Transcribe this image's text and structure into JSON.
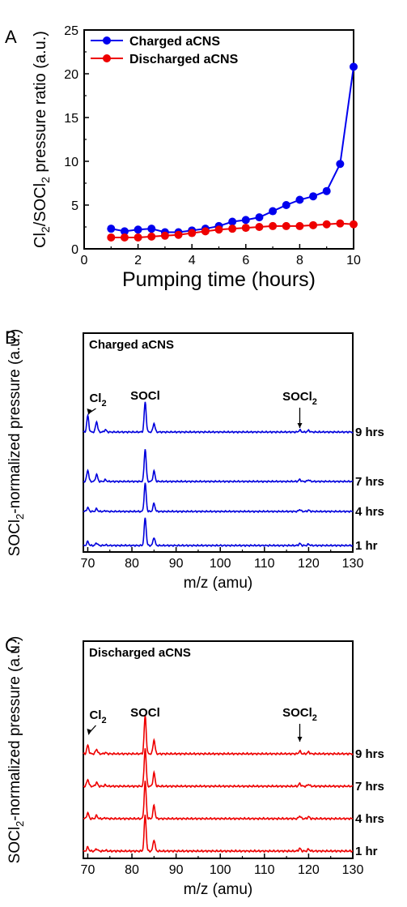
{
  "chart_data": [
    {
      "panel": "A",
      "type": "line",
      "xlabel": "Pumping time (hours)",
      "ylabel": [
        "Cl",
        "2",
        "/SOCl",
        "2",
        " pressure ratio (a.u.)"
      ],
      "xlim": [
        0,
        10
      ],
      "ylim": [
        0,
        25
      ],
      "x_ticks": [
        "0",
        "2",
        "4",
        "6",
        "8",
        "10"
      ],
      "y_ticks": [
        "0",
        "5",
        "10",
        "15",
        "20",
        "25"
      ],
      "x": [
        1,
        1.5,
        2,
        2.5,
        3,
        3.5,
        4,
        4.5,
        5,
        5.5,
        6,
        6.5,
        7,
        7.5,
        8,
        8.5,
        9,
        9.5,
        10
      ],
      "series": [
        {
          "name": "Charged aCNS",
          "color": "#0000ee",
          "values": [
            2.3,
            2.0,
            2.2,
            2.3,
            1.9,
            1.9,
            2.1,
            2.3,
            2.6,
            3.1,
            3.3,
            3.6,
            4.3,
            5.0,
            5.6,
            6.0,
            6.6,
            9.7,
            20.8
          ]
        },
        {
          "name": "Discharged aCNS",
          "color": "#ee0000",
          "values": [
            1.3,
            1.3,
            1.3,
            1.4,
            1.5,
            1.6,
            1.8,
            2.0,
            2.2,
            2.3,
            2.4,
            2.5,
            2.6,
            2.6,
            2.6,
            2.7,
            2.8,
            2.9,
            2.8
          ]
        }
      ],
      "legend": "top-left"
    },
    {
      "panel": "B",
      "type": "line",
      "title": "Charged aCNS",
      "color": "#0000dd",
      "xlabel": "m/z (amu)",
      "ylabel": [
        "SOCl",
        "2",
        "-normalized pressure (a.u.)"
      ],
      "xlim": [
        69,
        130
      ],
      "x_ticks": [
        "70",
        "80",
        "90",
        "100",
        "110",
        "120",
        "130"
      ],
      "traces": [
        "9 hrs",
        "7 hrs",
        "4 hrs",
        "1 hr"
      ],
      "peaks": [
        {
          "mz": 70,
          "heights": [
            0.5,
            0.35,
            0.12,
            0.12
          ]
        },
        {
          "mz": 72,
          "heights": [
            0.32,
            0.22,
            0.08,
            0.08
          ]
        },
        {
          "mz": 74,
          "heights": [
            0.07,
            0.05,
            0.02,
            0.02
          ]
        },
        {
          "mz": 83,
          "heights": [
            0.92,
            1.0,
            0.87,
            0.85
          ]
        },
        {
          "mz": 85,
          "heights": [
            0.27,
            0.32,
            0.25,
            0.25
          ]
        },
        {
          "mz": 118,
          "heights": [
            0.06,
            0.06,
            0.06,
            0.06
          ]
        },
        {
          "mz": 120,
          "heights": [
            0.05,
            0.05,
            0.04,
            0.04
          ]
        }
      ],
      "annotations": [
        {
          "text": [
            "Cl",
            "2"
          ],
          "mz": 70
        },
        {
          "text": [
            "SOCl"
          ],
          "mz": 83
        },
        {
          "text": [
            "SOCl",
            "2"
          ],
          "mz": 118
        }
      ]
    },
    {
      "panel": "C",
      "type": "line",
      "title": "Discharged aCNS",
      "color": "#ee0000",
      "xlabel": "m/z (amu)",
      "ylabel": [
        "SOCl",
        "2",
        "-normalized pressure (a.u.)"
      ],
      "xlim": [
        69,
        130
      ],
      "x_ticks": [
        "70",
        "80",
        "90",
        "100",
        "110",
        "120",
        "130"
      ],
      "traces": [
        "9 hrs",
        "7 hrs",
        "4 hrs",
        "1 hr"
      ],
      "peaks": [
        {
          "mz": 70,
          "heights": [
            0.22,
            0.18,
            0.15,
            0.1
          ]
        },
        {
          "mz": 72,
          "heights": [
            0.12,
            0.1,
            0.08,
            0.06
          ]
        },
        {
          "mz": 74,
          "heights": [
            0.03,
            0.03,
            0.02,
            0.02
          ]
        },
        {
          "mz": 83,
          "heights": [
            1.0,
            1.0,
            0.98,
            0.95
          ]
        },
        {
          "mz": 85,
          "heights": [
            0.37,
            0.35,
            0.35,
            0.3
          ]
        },
        {
          "mz": 118,
          "heights": [
            0.07,
            0.07,
            0.07,
            0.07
          ]
        },
        {
          "mz": 120,
          "heights": [
            0.05,
            0.05,
            0.05,
            0.05
          ]
        }
      ],
      "annotations": [
        {
          "text": [
            "Cl",
            "2"
          ],
          "mz": 70
        },
        {
          "text": [
            "SOCl"
          ],
          "mz": 83
        },
        {
          "text": [
            "SOCl",
            "2"
          ],
          "mz": 118
        }
      ]
    }
  ]
}
